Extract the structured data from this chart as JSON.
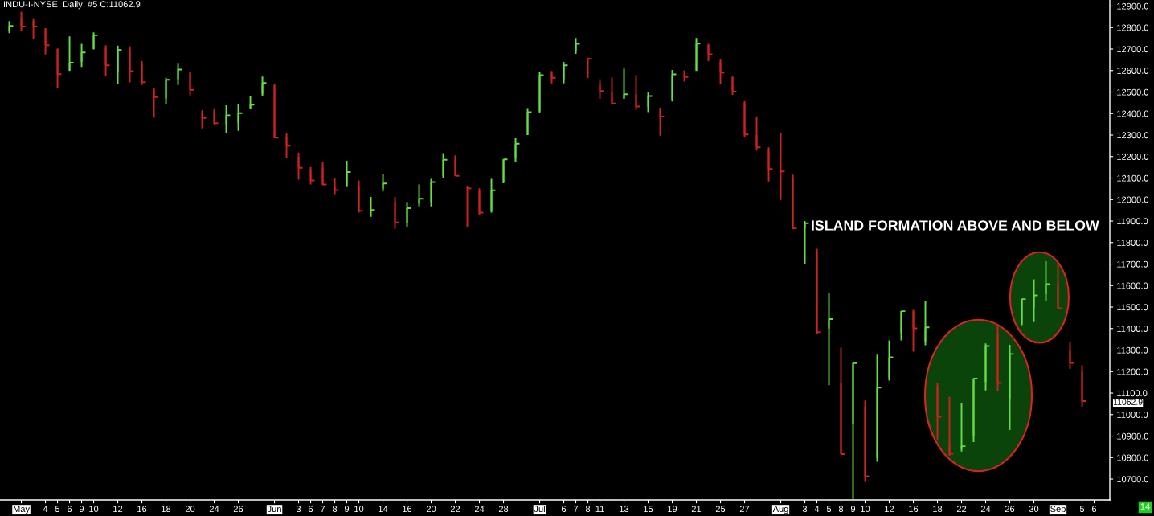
{
  "chart_data": {
    "type": "candlestick",
    "title": "INDU-I-NYSE  Daily  #5 C:11062.9",
    "categories": [
      null,
      "May",
      null,
      "4",
      "5",
      "6",
      "9",
      "10",
      null,
      "12",
      null,
      "16",
      null,
      "18",
      null,
      "20",
      null,
      "24",
      null,
      "26",
      null,
      null,
      "Jun",
      null,
      "3",
      "6",
      "7",
      "8",
      "9",
      "10",
      null,
      "14",
      null,
      "16",
      null,
      "20",
      null,
      "22",
      null,
      "24",
      null,
      "28",
      null,
      null,
      "Jul",
      null,
      "6",
      "7",
      "8",
      "11",
      null,
      "13",
      null,
      "15",
      null,
      "19",
      null,
      "21",
      null,
      "25",
      null,
      "27",
      null,
      null,
      "Aug",
      null,
      "3",
      "4",
      "5",
      "8",
      "9",
      "10",
      null,
      "12",
      null,
      "16",
      null,
      "18",
      null,
      "22",
      null,
      "24",
      null,
      "26",
      null,
      "30",
      null,
      "Sep",
      null,
      "5",
      "6"
    ],
    "ohlc": [
      [
        12785,
        12830,
        12774,
        12808
      ],
      [
        12845,
        12874,
        12782,
        12805
      ],
      [
        12830,
        12839,
        12748,
        12805
      ],
      [
        12795,
        12797,
        12675,
        12718
      ],
      [
        12700,
        12703,
        12520,
        12583
      ],
      [
        12600,
        12759,
        12598,
        12637
      ],
      [
        12640,
        12724,
        12617,
        12684
      ],
      [
        12700,
        12778,
        12698,
        12764
      ],
      [
        12705,
        12718,
        12575,
        12624
      ],
      [
        12590,
        12716,
        12536,
        12695
      ],
      [
        12700,
        12713,
        12545,
        12597
      ],
      [
        12630,
        12644,
        12533,
        12546
      ],
      [
        12510,
        12520,
        12380,
        12477
      ],
      [
        12470,
        12566,
        12442,
        12557
      ],
      [
        12560,
        12632,
        12533,
        12605
      ],
      [
        12590,
        12595,
        12484,
        12510
      ],
      [
        12400,
        12416,
        12331,
        12379
      ],
      [
        12405,
        12424,
        12350,
        12355
      ],
      [
        12350,
        12438,
        12309,
        12392
      ],
      [
        12355,
        12442,
        12320,
        12402
      ],
      [
        12425,
        12482,
        12422,
        12441
      ],
      [
        12490,
        12572,
        12481,
        12542
      ],
      [
        12530,
        12536,
        12285,
        12288
      ],
      [
        12290,
        12308,
        12193,
        12250
      ],
      [
        12200,
        12219,
        12093,
        12148
      ],
      [
        12140,
        12151,
        12070,
        12089
      ],
      [
        12150,
        12177,
        12067,
        12070
      ],
      [
        12060,
        12098,
        12024,
        12044
      ],
      [
        12065,
        12180,
        12058,
        12128
      ],
      [
        12060,
        12089,
        11939,
        11948
      ],
      [
        11945,
        12012,
        11920,
        11952
      ],
      [
        12050,
        12121,
        12037,
        12075
      ],
      [
        11990,
        12012,
        11864,
        11894
      ],
      [
        11890,
        11989,
        11874,
        11960
      ],
      [
        11980,
        12070,
        11968,
        12004
      ],
      [
        11990,
        12096,
        11968,
        12081
      ],
      [
        12110,
        12216,
        12101,
        12185
      ],
      [
        12200,
        12206,
        12109,
        12110
      ],
      [
        12058,
        12060,
        11874,
        12052
      ],
      [
        12040,
        12052,
        11929,
        11939
      ],
      [
        11950,
        12096,
        11939,
        12043
      ],
      [
        12080,
        12187,
        12076,
        12187
      ],
      [
        12190,
        12285,
        12177,
        12260
      ],
      [
        12300,
        12425,
        12300,
        12407
      ],
      [
        12410,
        12594,
        12402,
        12579
      ],
      [
        12590,
        12598,
        12540,
        12566
      ],
      [
        12560,
        12640,
        12540,
        12624
      ],
      [
        12690,
        12751,
        12678,
        12724
      ],
      [
        12657,
        12658,
        12565,
        12655
      ],
      [
        12540,
        12560,
        12468,
        12505
      ],
      [
        12500,
        12567,
        12445,
        12447
      ],
      [
        12470,
        12609,
        12468,
        12490
      ],
      [
        12490,
        12579,
        12418,
        12433
      ],
      [
        12430,
        12499,
        12407,
        12481
      ],
      [
        12420,
        12427,
        12297,
        12386
      ],
      [
        12460,
        12603,
        12456,
        12582
      ],
      [
        12580,
        12601,
        12549,
        12570
      ],
      [
        12600,
        12751,
        12598,
        12725
      ],
      [
        12720,
        12724,
        12644,
        12676
      ],
      [
        12640,
        12652,
        12537,
        12591
      ],
      [
        12570,
        12572,
        12487,
        12503
      ],
      [
        12450,
        12457,
        12289,
        12303
      ],
      [
        12300,
        12387,
        12228,
        12243
      ],
      [
        12230,
        12243,
        12084,
        12142
      ],
      [
        12140,
        12308,
        11998,
        12131
      ],
      [
        12100,
        12116,
        11862,
        11866
      ],
      [
        11866,
        11900,
        11698,
        11890
      ],
      [
        11760,
        11771,
        11376,
        11383
      ],
      [
        11400,
        11566,
        11137,
        11444
      ],
      [
        11146,
        11311,
        10816,
        10816
      ],
      [
        10955,
        11239,
        10604,
        11239
      ],
      [
        11034,
        11066,
        10687,
        10713
      ],
      [
        10797,
        11279,
        10781,
        11125
      ],
      [
        11170,
        11345,
        11158,
        11267
      ],
      [
        11379,
        11482,
        11345,
        11481
      ],
      [
        11480,
        11487,
        11293,
        11401
      ],
      [
        11340,
        11528,
        11323,
        11406
      ],
      [
        11130,
        11148,
        10884,
        10990
      ],
      [
        10859,
        11083,
        10809,
        10818
      ],
      [
        10840,
        11052,
        10828,
        10853
      ],
      [
        10900,
        11168,
        10872,
        11168
      ],
      [
        11151,
        11331,
        11112,
        11319
      ],
      [
        11371,
        11410,
        11108,
        11147
      ],
      [
        11072,
        11324,
        10928,
        11282
      ],
      [
        11422,
        11538,
        11416,
        11537
      ],
      [
        11498,
        11629,
        11430,
        11554
      ],
      [
        11560,
        11713,
        11526,
        11607
      ],
      [
        11607,
        11706,
        11495,
        11495
      ],
      [
        11302,
        11339,
        11212,
        11240
      ],
      [
        11200,
        11230,
        11036,
        11062.9
      ],
      null
    ],
    "colors": [
      "#66dd44",
      "#cc2222",
      "#cc2222",
      "#cc2222",
      "#cc2222",
      "#66dd44",
      "#66dd44",
      "#66dd44",
      "#cc2222",
      "#66dd44",
      "#cc2222",
      "#cc2222",
      "#cc2222",
      "#66dd44",
      "#66dd44",
      "#cc2222",
      "#cc2222",
      "#cc2222",
      "#66dd44",
      "#66dd44",
      "#66dd44",
      "#66dd44",
      "#cc2222",
      "#cc2222",
      "#cc2222",
      "#cc2222",
      "#cc2222",
      "#cc2222",
      "#66dd44",
      "#cc2222",
      "#66dd44",
      "#66dd44",
      "#cc2222",
      "#66dd44",
      "#66dd44",
      "#66dd44",
      "#66dd44",
      "#cc2222",
      "#cc2222",
      "#cc2222",
      "#66dd44",
      "#66dd44",
      "#66dd44",
      "#66dd44",
      "#66dd44",
      "#cc2222",
      "#66dd44",
      "#66dd44",
      "#cc2222",
      "#cc2222",
      "#cc2222",
      "#66dd44",
      "#cc2222",
      "#66dd44",
      "#cc2222",
      "#66dd44",
      "#cc2222",
      "#66dd44",
      "#cc2222",
      "#cc2222",
      "#cc2222",
      "#cc2222",
      "#cc2222",
      "#cc2222",
      "#cc2222",
      "#cc2222",
      "#66dd44",
      "#cc2222",
      "#66dd44",
      "#cc2222",
      "#66dd44",
      "#cc2222",
      "#66dd44",
      "#66dd44",
      "#66dd44",
      "#cc2222",
      "#66dd44",
      "#cc2222",
      "#cc2222",
      "#66dd44",
      "#66dd44",
      "#66dd44",
      "#cc2222",
      "#66dd44",
      "#66dd44",
      "#66dd44",
      "#66dd44",
      "#cc2222",
      "#cc2222",
      "#cc2222",
      null
    ],
    "ylim": [
      10603,
      12928
    ],
    "yticks": [
      {
        "value": 10700,
        "label": "10700.0"
      },
      {
        "value": 10800,
        "label": "10800.0"
      },
      {
        "value": 10900,
        "label": "10900.0"
      },
      {
        "value": 11000,
        "label": "11000.0"
      },
      {
        "value": 11100,
        "label": "11100.0"
      },
      {
        "value": 11200,
        "label": "11200.0"
      },
      {
        "value": 11300,
        "label": "11300.0"
      },
      {
        "value": 11400,
        "label": "11400.0"
      },
      {
        "value": 11500,
        "label": "11500.0"
      },
      {
        "value": 11600,
        "label": "11600.0"
      },
      {
        "value": 11700,
        "label": "11700.0"
      },
      {
        "value": 11800,
        "label": "11800.0"
      },
      {
        "value": 11900,
        "label": "11900.0"
      },
      {
        "value": 12000,
        "label": "12000.0"
      },
      {
        "value": 12100,
        "label": "12100.0"
      },
      {
        "value": 12200,
        "label": "12200.0"
      },
      {
        "value": 12300,
        "label": "12300.0"
      },
      {
        "value": 12400,
        "label": "12400.0"
      },
      {
        "value": 12500,
        "label": "12500.0"
      },
      {
        "value": 12600,
        "label": "12600.0"
      },
      {
        "value": 12700,
        "label": "12700.0"
      },
      {
        "value": 12800,
        "label": "12800.0"
      },
      {
        "value": 12900,
        "label": "12900.0"
      }
    ],
    "annotations": [
      "ISLAND FORMATION ABOVE AND BELOW",
      "11062.9",
      "14"
    ]
  }
}
